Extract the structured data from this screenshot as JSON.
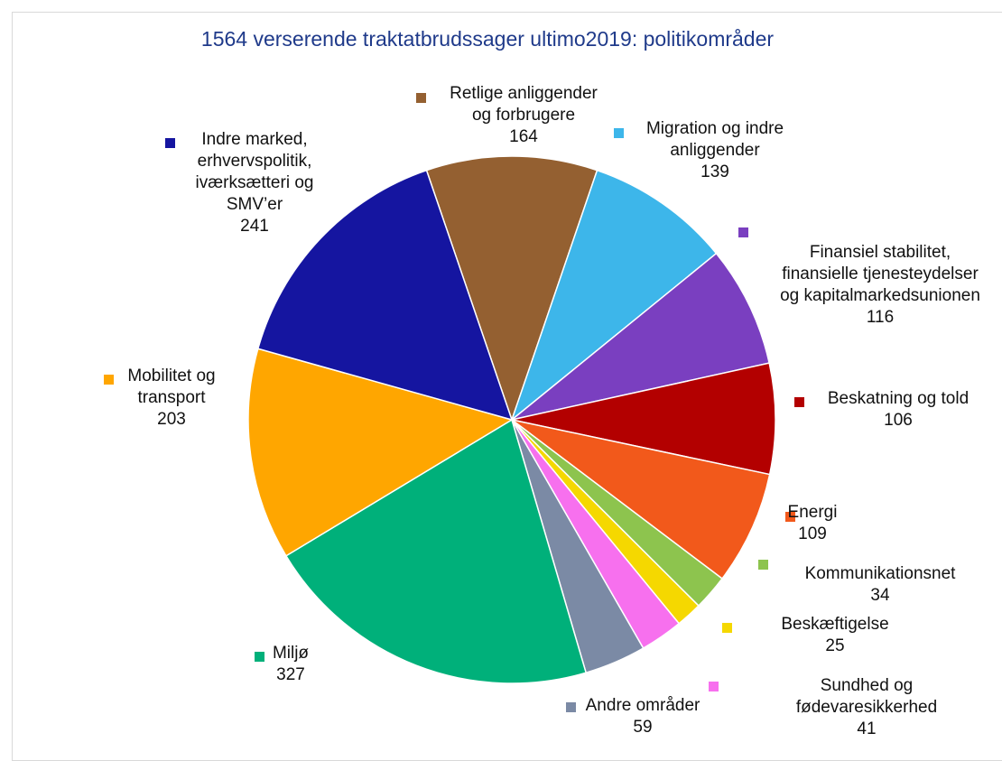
{
  "chart_data": {
    "type": "pie",
    "title": "1564 verserende traktatbrudssager ultimo2019: politikområder",
    "categories": [
      "Retlige anliggender\nog forbrugere",
      "Migration og indre\nanliggender",
      "Finansiel stabilitet,\nfinansielle tjenesteydelser\nog kapitalmarkedsunionen",
      "Beskatning og told",
      "Energi",
      "Kommunikationsnet",
      "Beskæftigelse",
      "Sundhed og\nfødevaresikkerhed",
      "Andre områder",
      "Miljø",
      "Mobilitet og\ntransport",
      "Indre marked,\nerhvervspolitik,\niværksætteri og\nSMV’er"
    ],
    "values": [
      164,
      139,
      116,
      106,
      109,
      34,
      25,
      41,
      59,
      327,
      203,
      241
    ],
    "colors": [
      "#946031",
      "#3db6ea",
      "#7a3fc0",
      "#b30000",
      "#f2591b",
      "#8dc44e",
      "#f5d800",
      "#f770ee",
      "#7b8aa5",
      "#00b07a",
      "#ffa600",
      "#1515a0"
    ]
  }
}
